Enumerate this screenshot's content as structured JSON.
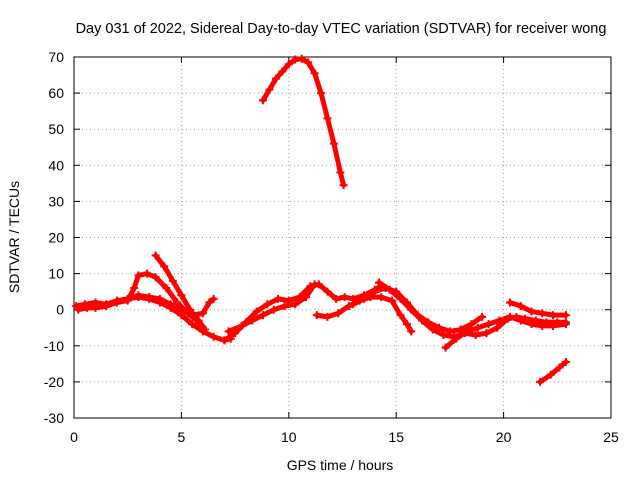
{
  "chart_data": {
    "type": "scatter",
    "title": "Day 031 of 2022, Sidereal Day-to-day VTEC variation (SDTVAR) for receiver wong",
    "xlabel": "GPS time / hours",
    "ylabel": "SDTVAR / TECUs",
    "xlim": [
      0,
      25
    ],
    "ylim": [
      -30,
      70
    ],
    "xticks": [
      0,
      5,
      10,
      15,
      20,
      25
    ],
    "yticks": [
      -30,
      -20,
      -10,
      0,
      10,
      20,
      30,
      40,
      50,
      60,
      70
    ],
    "xtick_labels": [
      "0",
      "5",
      "10",
      "15",
      "20",
      "25"
    ],
    "ytick_labels": [
      "-30",
      "-20",
      "-10",
      "0",
      "10",
      "20",
      "30",
      "40",
      "50",
      "60",
      "70"
    ],
    "grid": true,
    "marker_color": "#ff0000",
    "series": [
      {
        "name": "track-high-arc",
        "points": [
          [
            8.8,
            58
          ],
          [
            9.1,
            61
          ],
          [
            9.4,
            64
          ],
          [
            9.7,
            66
          ],
          [
            10.0,
            68
          ],
          [
            10.3,
            69.3
          ],
          [
            10.6,
            69.5
          ],
          [
            10.9,
            68.5
          ],
          [
            11.2,
            65.5
          ],
          [
            11.5,
            60
          ],
          [
            11.8,
            53
          ],
          [
            12.1,
            46
          ],
          [
            12.4,
            38
          ],
          [
            12.55,
            34.5
          ]
        ]
      },
      {
        "name": "track-early-a",
        "points": [
          [
            0.1,
            1
          ],
          [
            0.5,
            1.5
          ],
          [
            1.0,
            2
          ],
          [
            1.5,
            1.5
          ],
          [
            2.0,
            2.5
          ],
          [
            2.5,
            3
          ],
          [
            3.0,
            3.5
          ],
          [
            3.5,
            3
          ],
          [
            4.0,
            2
          ],
          [
            4.5,
            0.5
          ],
          [
            5.0,
            -1.5
          ],
          [
            5.5,
            -4
          ],
          [
            6.0,
            -6
          ],
          [
            6.5,
            -7.5
          ],
          [
            7.0,
            -8.5
          ],
          [
            7.3,
            -8
          ]
        ]
      },
      {
        "name": "track-early-b",
        "points": [
          [
            0.2,
            0
          ],
          [
            0.6,
            0.5
          ],
          [
            1.0,
            0.5
          ],
          [
            1.5,
            1
          ],
          [
            2.0,
            2
          ],
          [
            2.5,
            2.5
          ],
          [
            2.8,
            6
          ],
          [
            3.0,
            9.5
          ],
          [
            3.4,
            10
          ],
          [
            3.8,
            9
          ],
          [
            4.3,
            6
          ],
          [
            4.8,
            2
          ],
          [
            5.3,
            -1
          ],
          [
            5.8,
            -3.5
          ],
          [
            6.0,
            -5
          ]
        ]
      },
      {
        "name": "track-early-c",
        "points": [
          [
            3.8,
            15
          ],
          [
            4.2,
            12
          ],
          [
            4.6,
            8
          ],
          [
            5.0,
            4
          ],
          [
            5.4,
            0
          ],
          [
            5.8,
            -3
          ],
          [
            6.1,
            -5.5
          ]
        ]
      },
      {
        "name": "track-early-d",
        "points": [
          [
            2.5,
            3
          ],
          [
            3.0,
            4
          ],
          [
            3.5,
            3.5
          ],
          [
            4.0,
            3
          ],
          [
            4.5,
            1.5
          ],
          [
            5.0,
            0
          ],
          [
            5.5,
            -1.5
          ],
          [
            6.0,
            -1
          ],
          [
            6.3,
            2
          ],
          [
            6.5,
            3
          ]
        ]
      },
      {
        "name": "track-mid-a",
        "points": [
          [
            7.0,
            -8.5
          ],
          [
            7.5,
            -6.5
          ],
          [
            8.0,
            -3.5
          ],
          [
            8.5,
            -0.5
          ],
          [
            9.0,
            1.5
          ],
          [
            9.5,
            3
          ],
          [
            10.0,
            2.5
          ],
          [
            10.5,
            3.5
          ],
          [
            11.0,
            6.5
          ],
          [
            11.4,
            7
          ],
          [
            11.8,
            5
          ],
          [
            12.2,
            3
          ],
          [
            12.6,
            3.5
          ],
          [
            13.0,
            3
          ],
          [
            13.5,
            4
          ],
          [
            14.0,
            5.5
          ],
          [
            14.3,
            6.5
          ]
        ]
      },
      {
        "name": "track-mid-b",
        "points": [
          [
            7.2,
            -6
          ],
          [
            7.8,
            -4.5
          ],
          [
            8.3,
            -3
          ],
          [
            8.8,
            -1.5
          ],
          [
            9.3,
            0
          ],
          [
            9.8,
            1
          ],
          [
            10.3,
            1.5
          ],
          [
            10.8,
            3.5
          ],
          [
            11.2,
            7
          ]
        ]
      },
      {
        "name": "track-mid-c",
        "points": [
          [
            11.3,
            -1.5
          ],
          [
            11.8,
            -2
          ],
          [
            12.3,
            -1
          ],
          [
            12.8,
            1
          ],
          [
            13.3,
            2.5
          ],
          [
            13.8,
            3.5
          ],
          [
            14.3,
            3.5
          ],
          [
            14.8,
            2.5
          ],
          [
            15.2,
            -1.5
          ],
          [
            15.5,
            -4
          ],
          [
            15.7,
            -6
          ]
        ]
      },
      {
        "name": "track-mid-d",
        "points": [
          [
            13.0,
            1.5
          ],
          [
            13.5,
            3
          ],
          [
            14.0,
            5
          ],
          [
            14.5,
            6
          ],
          [
            15.0,
            5
          ],
          [
            15.5,
            2
          ],
          [
            16.0,
            -1.5
          ],
          [
            16.5,
            -3.5
          ],
          [
            17.0,
            -5
          ],
          [
            17.5,
            -6
          ],
          [
            18.0,
            -5.5
          ],
          [
            18.5,
            -4
          ],
          [
            19.0,
            -2
          ]
        ]
      },
      {
        "name": "track-late-a",
        "points": [
          [
            14.2,
            7.5
          ],
          [
            14.7,
            5.5
          ],
          [
            15.2,
            3
          ],
          [
            15.7,
            0
          ],
          [
            16.2,
            -3
          ],
          [
            16.7,
            -5.5
          ],
          [
            17.2,
            -7
          ],
          [
            17.7,
            -7.5
          ],
          [
            18.2,
            -6.5
          ],
          [
            18.7,
            -7
          ],
          [
            19.2,
            -6.5
          ],
          [
            19.7,
            -5
          ],
          [
            20.2,
            -2.5
          ],
          [
            20.6,
            -2
          ],
          [
            21.0,
            -2.5
          ],
          [
            21.5,
            -3
          ],
          [
            22.0,
            -3.5
          ],
          [
            22.5,
            -3.5
          ],
          [
            22.9,
            -3.5
          ]
        ]
      },
      {
        "name": "track-late-b",
        "points": [
          [
            17.3,
            -10.5
          ],
          [
            17.8,
            -8
          ],
          [
            18.3,
            -6
          ],
          [
            18.8,
            -5
          ],
          [
            19.3,
            -4
          ],
          [
            19.8,
            -3
          ],
          [
            20.3,
            -2
          ],
          [
            20.8,
            -3
          ],
          [
            21.3,
            -4
          ],
          [
            21.8,
            -4.5
          ],
          [
            22.3,
            -4.5
          ],
          [
            22.9,
            -4
          ]
        ]
      },
      {
        "name": "track-late-c",
        "points": [
          [
            20.3,
            2
          ],
          [
            20.8,
            1
          ],
          [
            21.3,
            -0.5
          ],
          [
            21.8,
            -1
          ],
          [
            22.3,
            -1.5
          ],
          [
            22.9,
            -1.5
          ]
        ]
      },
      {
        "name": "track-late-d",
        "points": [
          [
            21.7,
            -20
          ],
          [
            22.2,
            -18
          ],
          [
            22.6,
            -16
          ],
          [
            22.9,
            -14.5
          ]
        ]
      }
    ]
  }
}
